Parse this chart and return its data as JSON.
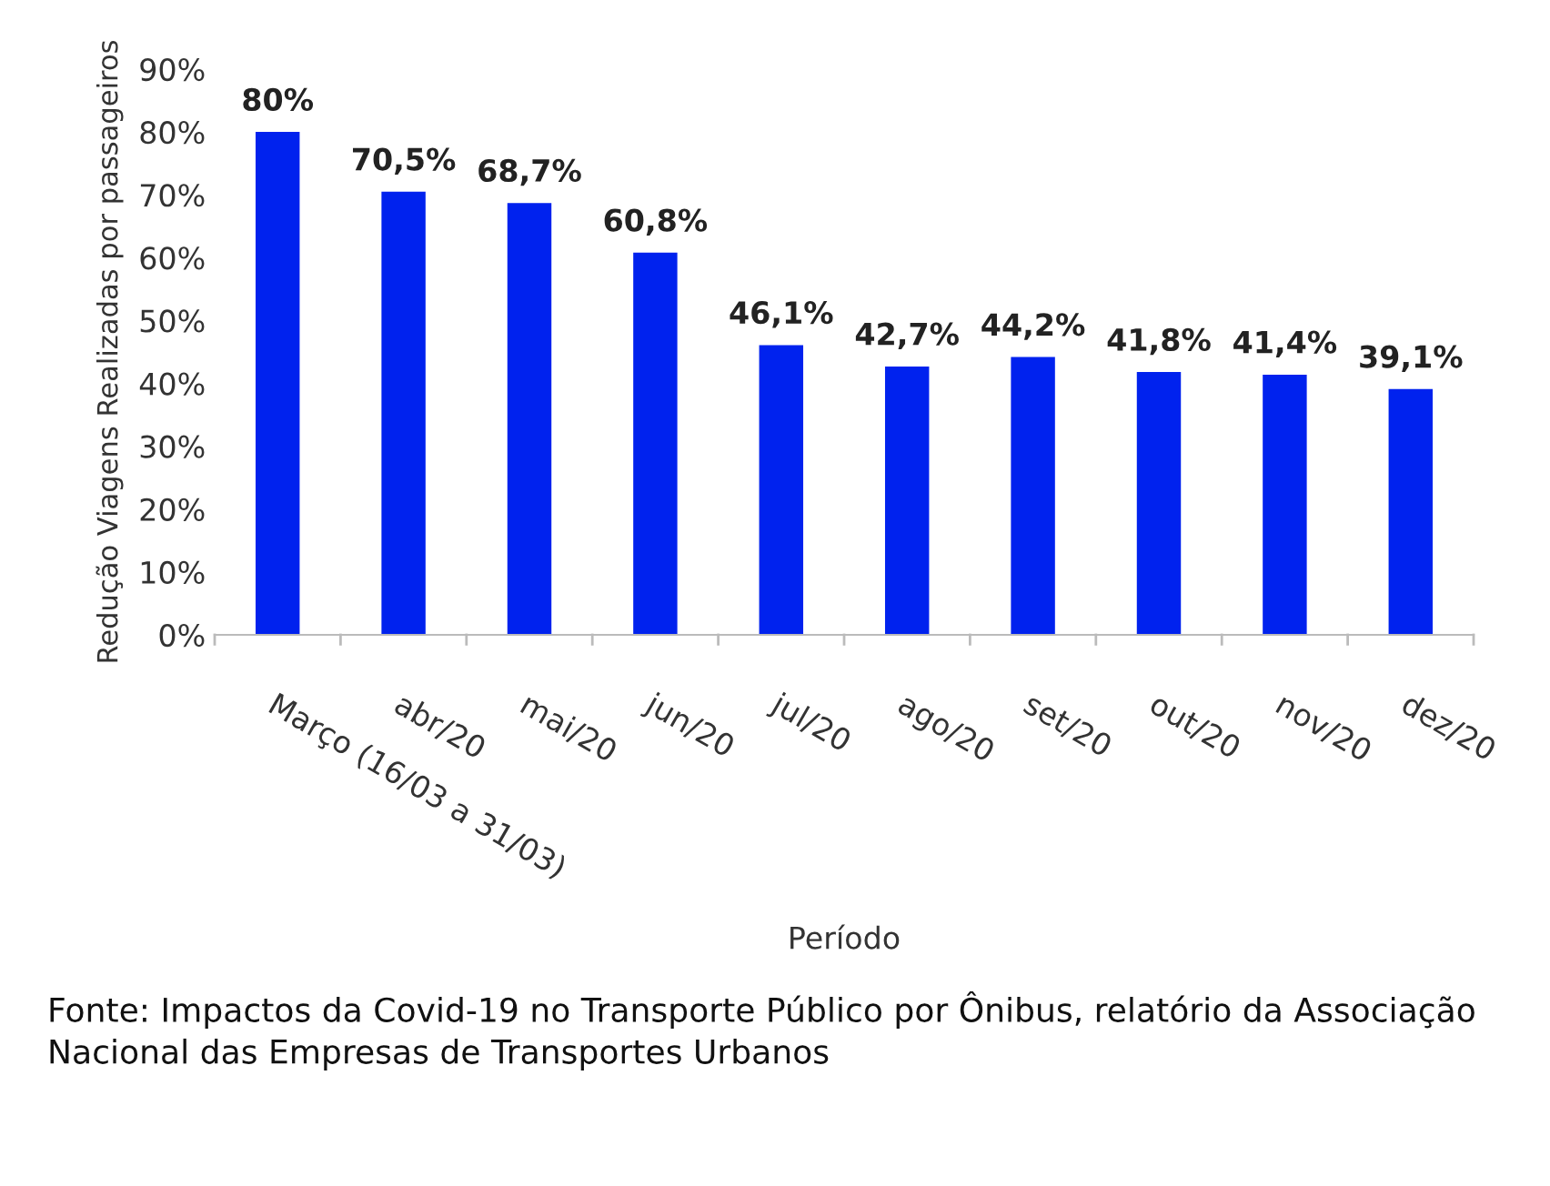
{
  "chart_data": {
    "type": "bar",
    "xlabel": "Período",
    "ylabel": "Redução Viagens Realizadas por passageiros",
    "categories": [
      "Março (16/03 a 31/03)",
      "abr/20",
      "mai/20",
      "jun/20",
      "jul/20",
      "ago/20",
      "set/20",
      "out/20",
      "nov/20",
      "dez/20"
    ],
    "values": [
      80,
      70.5,
      68.7,
      60.8,
      46.1,
      42.7,
      44.2,
      41.8,
      41.4,
      39.1
    ],
    "value_labels": [
      "80%",
      "70,5%",
      "68,7%",
      "60,8%",
      "46,1%",
      "42,7%",
      "44,2%",
      "41,8%",
      "41,4%",
      "39,1%"
    ],
    "color": "#0022ee",
    "ylim": [
      0,
      90
    ],
    "yticks": [
      {
        "value": 0,
        "label": "0%"
      },
      {
        "value": 10,
        "label": "10%"
      },
      {
        "value": 20,
        "label": "20%"
      },
      {
        "value": 30,
        "label": "30%"
      },
      {
        "value": 40,
        "label": "40%"
      },
      {
        "value": 50,
        "label": "50%"
      },
      {
        "value": 60,
        "label": "60%"
      },
      {
        "value": 70,
        "label": "70%"
      },
      {
        "value": 80,
        "label": "80%"
      },
      {
        "value": 90,
        "label": "90%"
      }
    ],
    "grid": false,
    "annotations": [
      "Fonte: Impactos da Covid-19 no Transporte Público por Ônibus, relatório da Associação Nacional das Empresas de Transportes Urbanos"
    ]
  }
}
